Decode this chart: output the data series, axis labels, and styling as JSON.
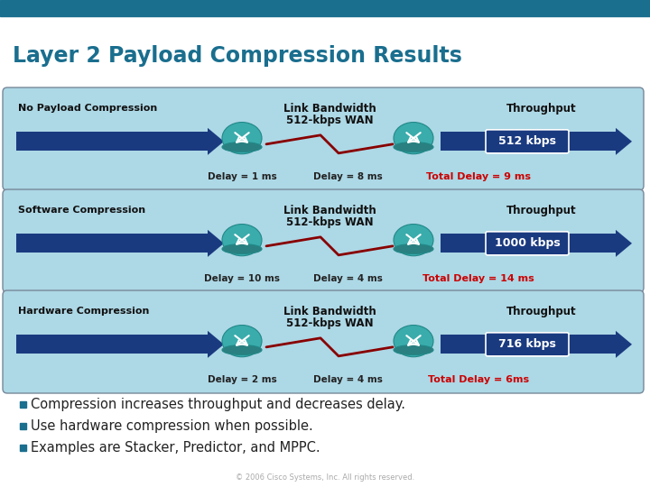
{
  "title": "Layer 2 Payload Compression Results",
  "title_color": "#1a6e8e",
  "header_bar_color": "#1a6e8e",
  "bg_color": "#ffffff",
  "rows": [
    {
      "label": "No Payload Compression",
      "link_bw_line1": "Link Bandwidth",
      "link_bw_line2": "512-kbps WAN",
      "throughput_label": "Throughput",
      "throughput_value": "512 kbps",
      "delay1": "Delay = 1 ms",
      "delay2": "Delay = 8 ms",
      "total_delay": "Total Delay = 9 ms",
      "box_bg": "#add8e6",
      "arrow_color": "#1a3a80",
      "throughput_box_color": "#1a3a80"
    },
    {
      "label": "Software Compression",
      "link_bw_line1": "Link Bandwidth",
      "link_bw_line2": "512-kbps WAN",
      "throughput_label": "Throughput",
      "throughput_value": "1000 kbps",
      "delay1": "Delay = 10 ms",
      "delay2": "Delay = 4 ms",
      "total_delay": "Total Delay = 14 ms",
      "box_bg": "#add8e6",
      "arrow_color": "#1a3a80",
      "throughput_box_color": "#1a3a80"
    },
    {
      "label": "Hardware Compression",
      "link_bw_line1": "Link Bandwidth",
      "link_bw_line2": "512-kbps WAN",
      "throughput_label": "Throughput",
      "throughput_value": "716 kbps",
      "delay1": "Delay = 2 ms",
      "delay2": "Delay = 4 ms",
      "total_delay": "Total Delay = 6ms",
      "box_bg": "#add8e6",
      "arrow_color": "#1a3a80",
      "throughput_box_color": "#1a3a80"
    }
  ],
  "bullets": [
    "Compression increases throughput and decreases delay.",
    "Use hardware compression when possible.",
    "Examples are Stacker, Predictor, and MPPC."
  ],
  "bullet_color": "#1a6e8e",
  "bullet_text_color": "#222222",
  "copyright": "© 2006 Cisco Systems, Inc. All rights reserved.",
  "total_delay_color": "#cc0000",
  "delay_text_color": "#222222",
  "router_color_top": "#3aacac",
  "router_color_bottom": "#2a8080",
  "wan_line_color": "#880000"
}
